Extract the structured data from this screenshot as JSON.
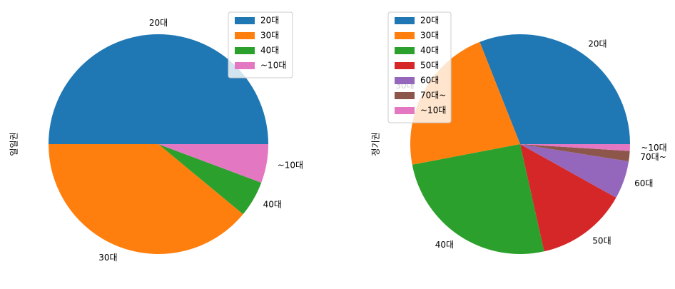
{
  "chart_data": [
    {
      "type": "pie",
      "ylabel": "일일권",
      "categories": [
        "20대",
        "30대",
        "40대",
        "~10대"
      ],
      "values": [
        50.0,
        39.0,
        5.3,
        5.7
      ],
      "colors": [
        "#1f77b4",
        "#ff7f0e",
        "#2ca02c",
        "#e377c2"
      ],
      "legend": {
        "placement": "top-right",
        "entries": [
          "20대",
          "30대",
          "40대",
          "~10대"
        ]
      }
    },
    {
      "type": "pie",
      "ylabel": "정기권",
      "categories": [
        "20대",
        "30대",
        "40대",
        "50대",
        "60대",
        "70대~",
        "~10대"
      ],
      "values": [
        31.0,
        22.0,
        25.5,
        13.4,
        5.6,
        1.5,
        1.0
      ],
      "colors": [
        "#1f77b4",
        "#ff7f0e",
        "#2ca02c",
        "#d62728",
        "#9467bd",
        "#8c564b",
        "#e377c2"
      ],
      "legend": {
        "placement": "top-left",
        "entries": [
          "20대",
          "30대",
          "40대",
          "50대",
          "60대",
          "70대~",
          "~10대"
        ]
      }
    }
  ]
}
